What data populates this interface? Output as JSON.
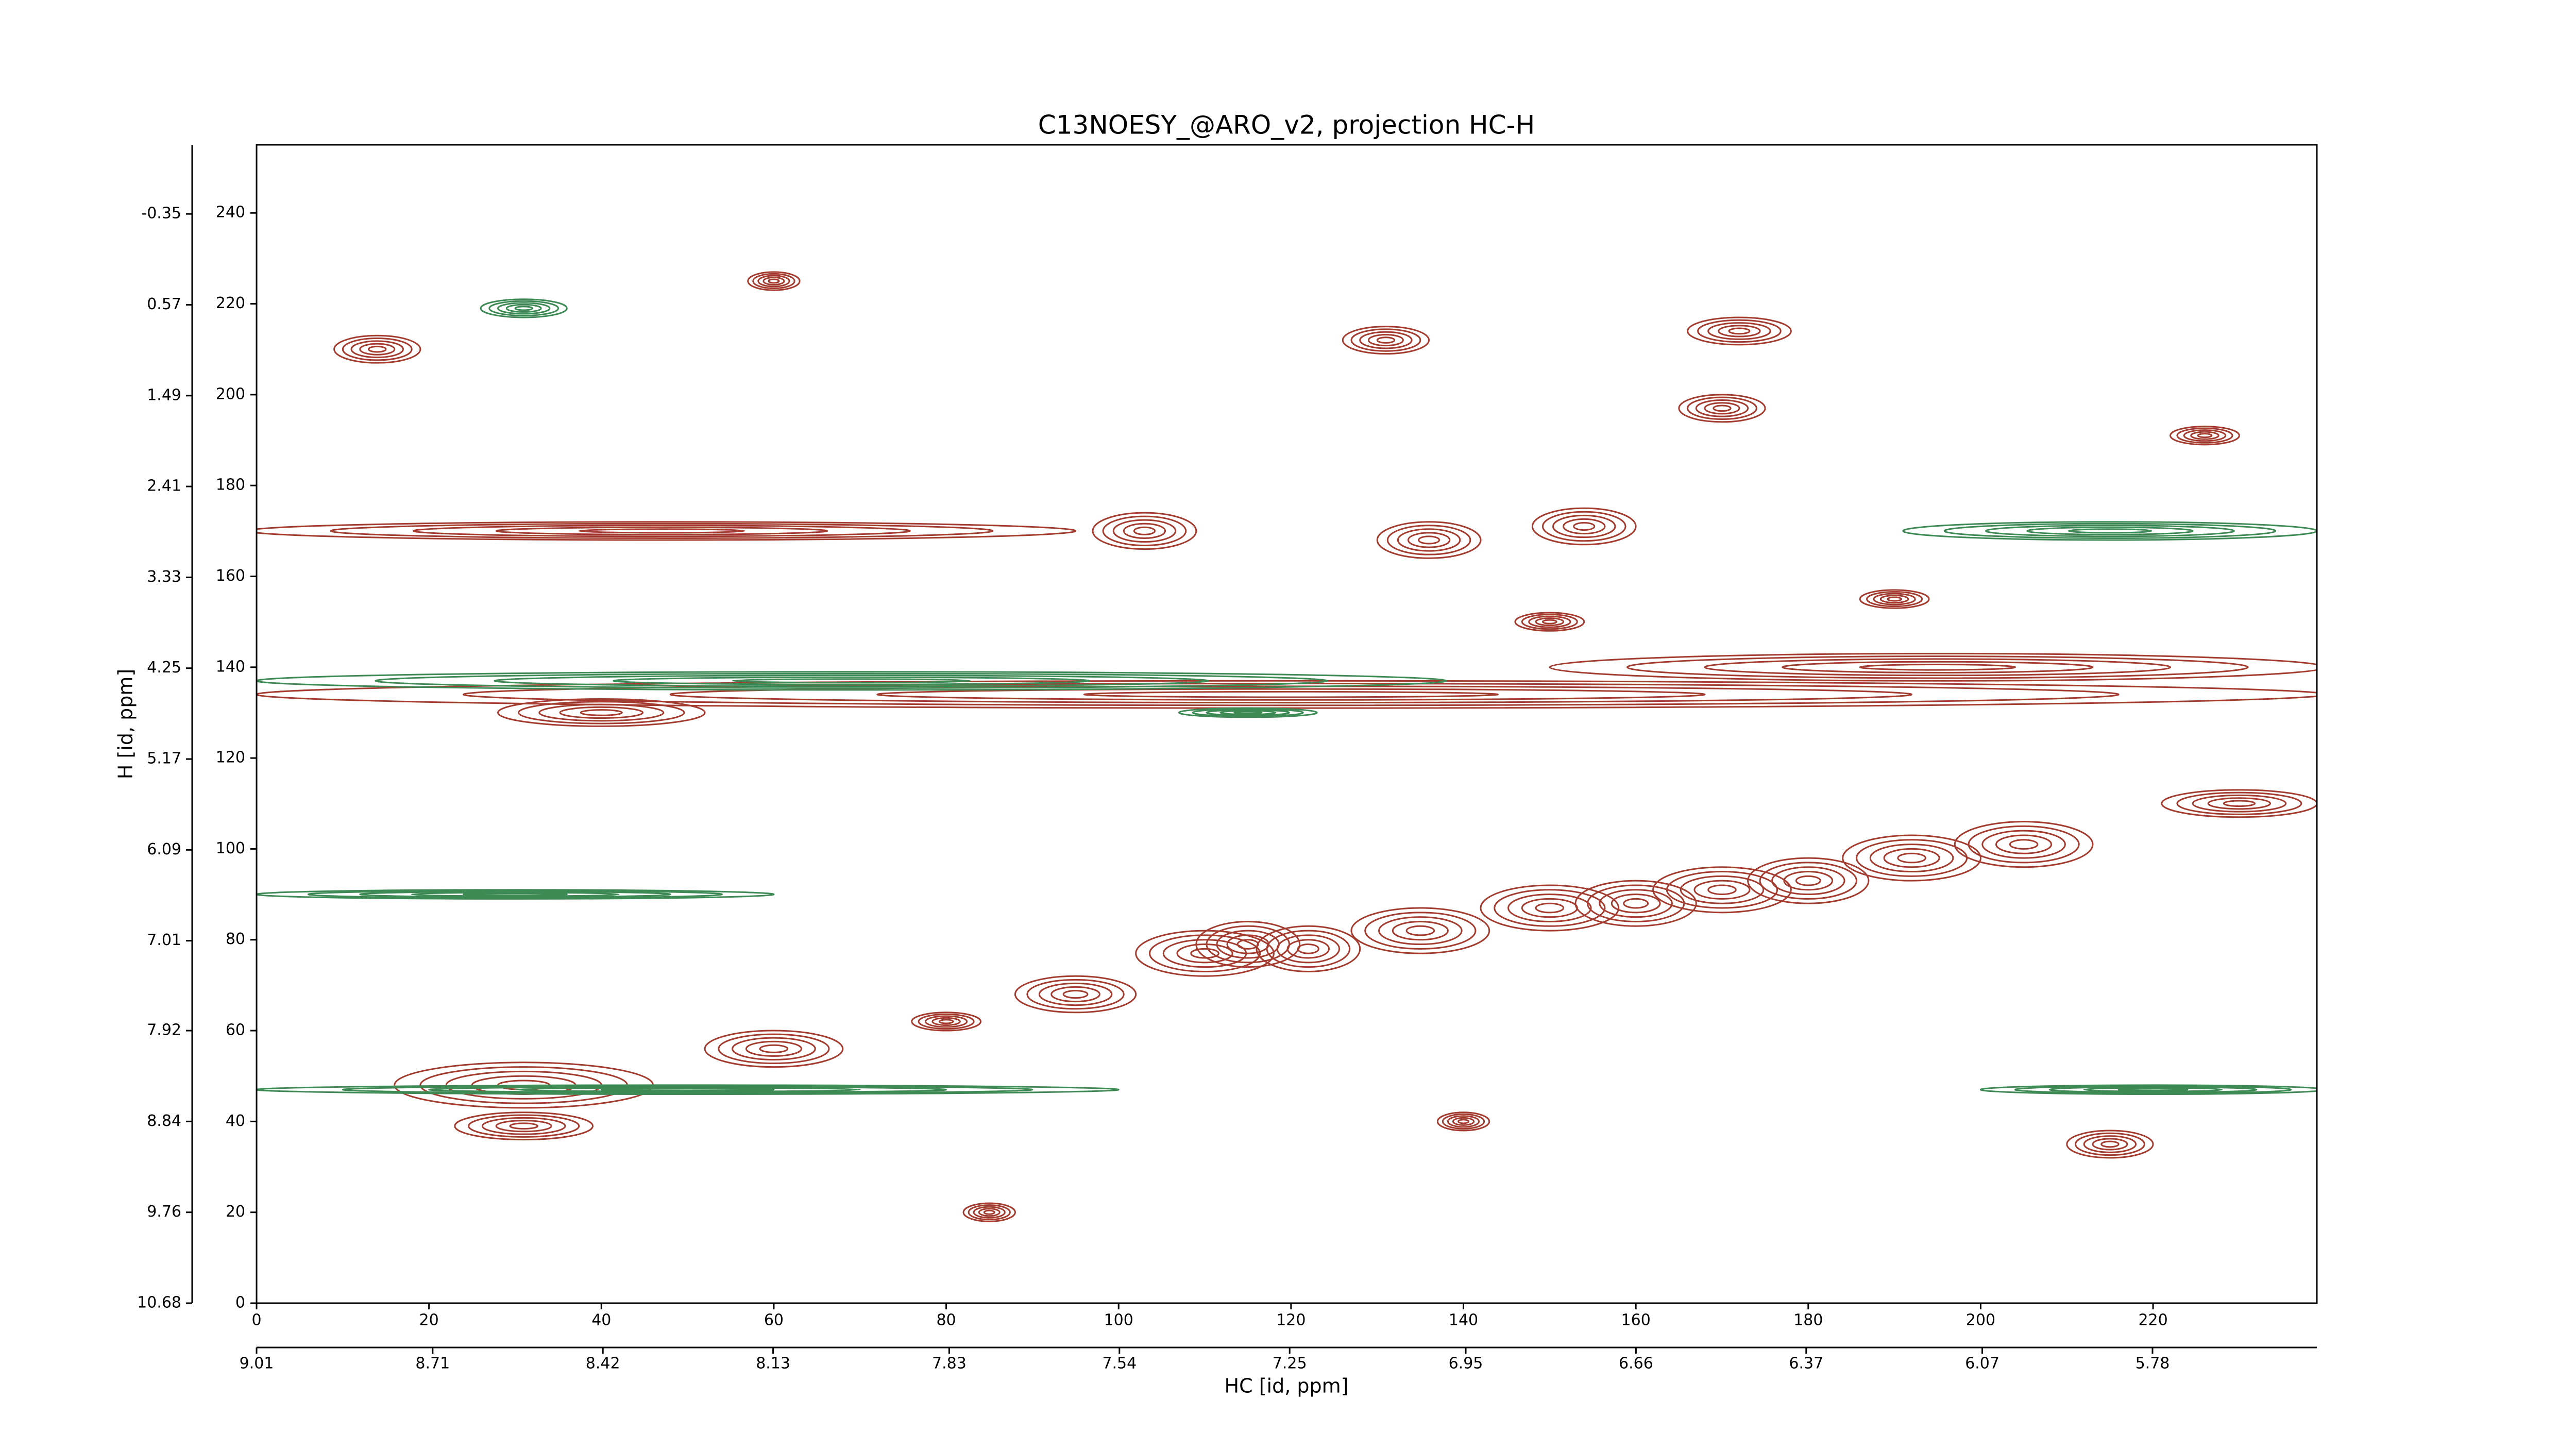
{
  "chart_data": {
    "type": "contour",
    "title": "C13NOESY_@ARO_v2, projection HC-H",
    "x_label": "HC [id, ppm]",
    "y_label": "H [id, ppm]",
    "xlim": [
      0,
      239
    ],
    "xticks": [
      0,
      20,
      40,
      60,
      80,
      100,
      120,
      140,
      160,
      180,
      200,
      220
    ],
    "ylim": [
      0,
      255
    ],
    "yticks": [
      0,
      20,
      40,
      60,
      80,
      100,
      120,
      140,
      160,
      180,
      200,
      220,
      240
    ],
    "x2lim": [
      9.01,
      5.5
    ],
    "x2ticks": [
      9.01,
      8.71,
      8.42,
      8.13,
      7.83,
      7.54,
      7.25,
      6.95,
      6.66,
      6.37,
      6.07,
      5.78
    ],
    "y2lim": [
      10.68,
      -1.05
    ],
    "y2ticks": [
      10.68,
      9.76,
      8.84,
      7.92,
      7.01,
      6.09,
      5.17,
      4.25,
      3.33,
      2.41,
      1.49,
      0.57,
      -0.35
    ],
    "series": [
      {
        "color": "#a33b2f",
        "x": [
          47,
          120,
          195,
          95,
          110,
          122,
          135,
          150,
          160,
          170,
          180,
          192,
          205,
          31,
          60,
          31,
          14,
          131,
          172,
          103,
          136,
          154,
          230,
          226,
          170,
          115,
          40,
          80,
          150,
          190,
          215,
          60,
          85,
          140
        ],
        "y": [
          170,
          134,
          140,
          68,
          77,
          78,
          82,
          87,
          88,
          91,
          93,
          98,
          101,
          48,
          56,
          39,
          210,
          212,
          214,
          170,
          168,
          171,
          110,
          191,
          197,
          79,
          130,
          62,
          150,
          155,
          35,
          225,
          20,
          40
        ],
        "sx": [
          48,
          120,
          45,
          7,
          8,
          6,
          8,
          8,
          7,
          8,
          7,
          8,
          8,
          15,
          8,
          8,
          5,
          5,
          6,
          6,
          6,
          6,
          9,
          4,
          5,
          6,
          12,
          4,
          4,
          4,
          5,
          3,
          3,
          3
        ],
        "sy": [
          2,
          3,
          3,
          4,
          5,
          5,
          5,
          5,
          5,
          5,
          5,
          5,
          5,
          5,
          4,
          3,
          3,
          3,
          3,
          4,
          4,
          4,
          3,
          2,
          3,
          5,
          3,
          2,
          2,
          2,
          3,
          2,
          2,
          2
        ]
      },
      {
        "color": "#3d8a55",
        "x": [
          69,
          215,
          50,
          31,
          30,
          220,
          115
        ],
        "y": [
          137,
          170,
          47,
          219,
          90,
          47,
          130
        ],
        "sx": [
          69,
          24,
          50,
          5,
          30,
          20,
          8
        ],
        "sy": [
          2,
          2,
          1,
          2,
          1,
          1,
          1
        ]
      }
    ]
  }
}
